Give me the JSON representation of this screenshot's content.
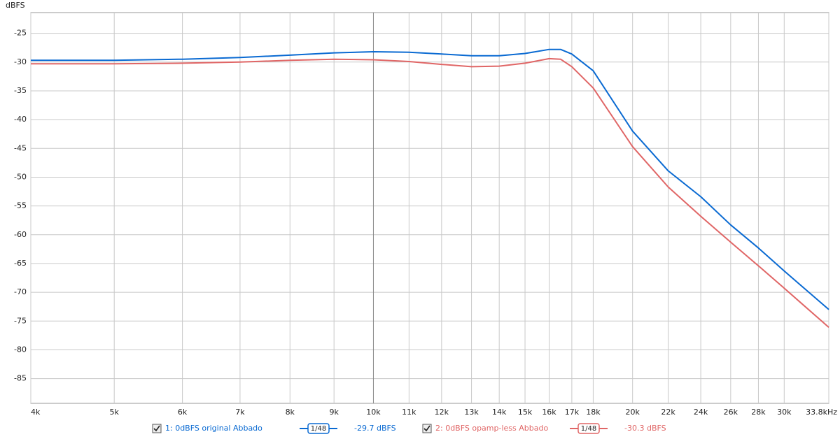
{
  "chart_data": {
    "type": "line",
    "y_label": "dBFS",
    "x": [
      4000,
      5000,
      6000,
      7000,
      8000,
      9000,
      10000,
      11000,
      12000,
      13000,
      14000,
      15000,
      16000,
      16500,
      17000,
      18000,
      20000,
      22000,
      24000,
      26000,
      28000,
      30000,
      33800
    ],
    "series": [
      {
        "name": "1: 0dBFS original Abbado",
        "color": "#0a6ad2",
        "smoothing": "1/48",
        "reading": "-29.7 dBFS",
        "values": [
          -29.7,
          -29.7,
          -29.5,
          -29.2,
          -28.8,
          -28.4,
          -28.2,
          -28.3,
          -28.6,
          -28.9,
          -28.9,
          -28.5,
          -27.8,
          -27.8,
          -28.6,
          -31.5,
          -42.0,
          -48.9,
          -53.4,
          -58.3,
          -62.3,
          -66.3,
          -73.0
        ]
      },
      {
        "name": "2: 0dBFS  opamp-less Abbado",
        "color": "#e06666",
        "smoothing": "1/48",
        "reading": "-30.3 dBFS",
        "values": [
          -30.3,
          -30.3,
          -30.2,
          -30.0,
          -29.7,
          -29.5,
          -29.6,
          -29.9,
          -30.4,
          -30.8,
          -30.7,
          -30.2,
          -29.4,
          -29.5,
          -30.8,
          -34.5,
          -44.7,
          -51.7,
          -56.8,
          -61.3,
          -65.4,
          -69.3,
          -76.1
        ]
      }
    ],
    "xscale": "log",
    "xlim": [
      4000,
      33800
    ],
    "ylim": [
      -89.3,
      -21.4
    ],
    "xticks": [
      {
        "value": 4000,
        "label": "4k"
      },
      {
        "value": 5000,
        "label": "5k"
      },
      {
        "value": 6000,
        "label": "6k"
      },
      {
        "value": 7000,
        "label": "7k"
      },
      {
        "value": 8000,
        "label": "8k"
      },
      {
        "value": 9000,
        "label": "9k"
      },
      {
        "value": 10000,
        "label": "10k"
      },
      {
        "value": 11000,
        "label": "11k"
      },
      {
        "value": 12000,
        "label": "12k"
      },
      {
        "value": 13000,
        "label": "13k"
      },
      {
        "value": 14000,
        "label": "14k"
      },
      {
        "value": 15000,
        "label": "15k"
      },
      {
        "value": 16000,
        "label": "16k"
      },
      {
        "value": 17000,
        "label": "17k"
      },
      {
        "value": 18000,
        "label": "18k"
      },
      {
        "value": 20000,
        "label": "20k"
      },
      {
        "value": 22000,
        "label": "22k"
      },
      {
        "value": 24000,
        "label": "24k"
      },
      {
        "value": 26000,
        "label": "26k"
      },
      {
        "value": 28000,
        "label": "28k"
      },
      {
        "value": 30000,
        "label": "30k"
      },
      {
        "value": 33800,
        "label": "33.8kHz"
      }
    ],
    "yticks": [
      -25,
      -30,
      -35,
      -40,
      -45,
      -50,
      -55,
      -60,
      -65,
      -70,
      -75,
      -80,
      -85
    ],
    "grid": true
  }
}
